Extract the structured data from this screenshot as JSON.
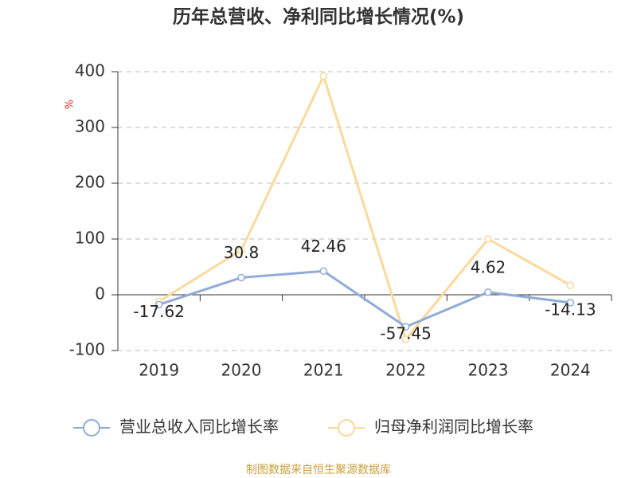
{
  "chart_data": {
    "type": "line",
    "title": "历年总营收、净利同比增长情况(%)",
    "y_unit": "%",
    "source": "制图数据来自恒生聚源数据库",
    "categories": [
      "2019",
      "2020",
      "2021",
      "2022",
      "2023",
      "2024"
    ],
    "series": [
      {
        "name": "营业总收入同比增长率",
        "color": "#8fabd8",
        "values": [
          -17.62,
          30.8,
          42.46,
          -57.45,
          4.62,
          -14.13
        ],
        "show_labels": true
      },
      {
        "name": "归母净利润同比增长率",
        "color": "#fbd99b",
        "values": [
          -12,
          80,
          392,
          -80,
          100,
          17
        ],
        "show_labels": false
      }
    ],
    "ylim": [
      -100,
      400
    ],
    "yticks": [
      -100,
      0,
      100,
      200,
      300,
      400
    ],
    "grid": true
  }
}
